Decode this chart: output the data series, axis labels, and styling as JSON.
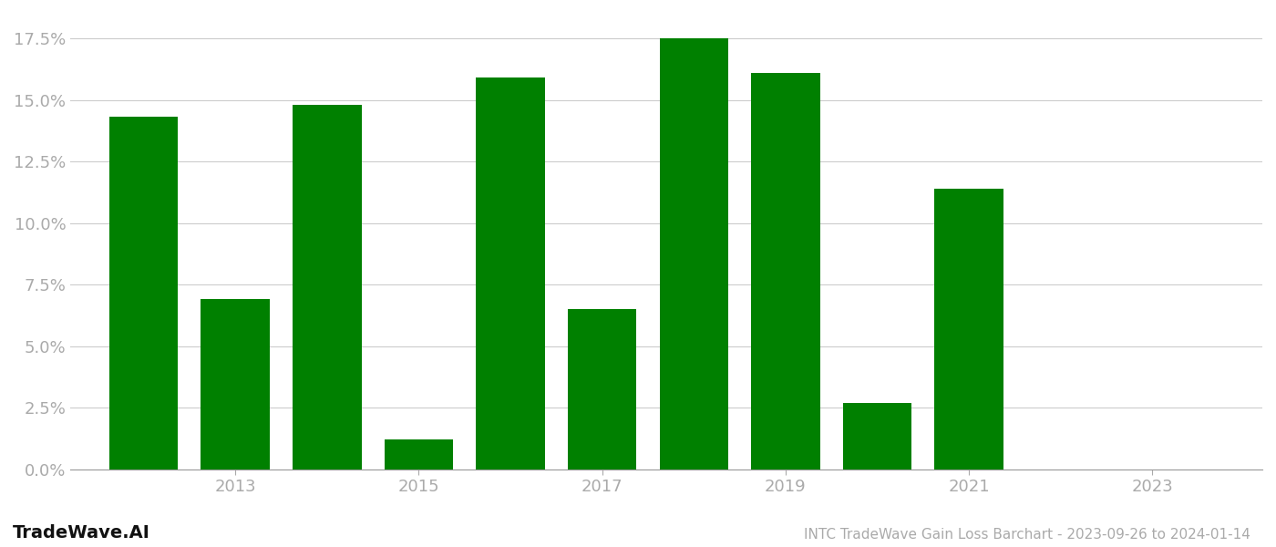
{
  "years": [
    2012,
    2013,
    2014,
    2015,
    2016,
    2017,
    2018,
    2019,
    2020,
    2021,
    2022
  ],
  "values": [
    0.143,
    0.069,
    0.148,
    0.012,
    0.159,
    0.065,
    0.175,
    0.161,
    0.027,
    0.114,
    0.0
  ],
  "bar_color": "#008000",
  "title": "INTC TradeWave Gain Loss Barchart - 2023-09-26 to 2024-01-14",
  "watermark": "TradeWave.AI",
  "background_color": "#ffffff",
  "grid_color": "#cccccc",
  "axis_label_color": "#aaaaaa",
  "ylim": [
    0,
    0.185
  ],
  "yticks": [
    0.0,
    0.025,
    0.05,
    0.075,
    0.1,
    0.125,
    0.15,
    0.175
  ],
  "xtick_positions": [
    2013,
    2015,
    2017,
    2019,
    2021,
    2023
  ],
  "xtick_labels": [
    "2013",
    "2015",
    "2017",
    "2019",
    "2021",
    "2023"
  ],
  "xlim": [
    2011.2,
    2024.2
  ],
  "bar_width": 0.75
}
